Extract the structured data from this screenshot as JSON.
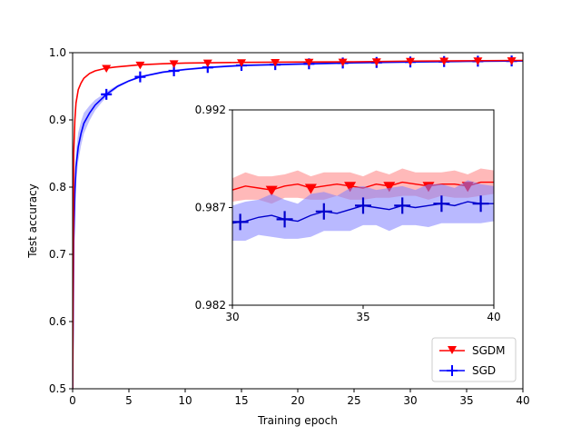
{
  "chart_data": [
    {
      "type": "line",
      "role": "main",
      "xlabel": "Training epoch",
      "ylabel": "Test accuracy",
      "xlim": [
        0,
        40
      ],
      "ylim": [
        0.5,
        1.0
      ],
      "xticks": [
        0,
        5,
        10,
        15,
        20,
        25,
        30,
        35,
        40
      ],
      "yticks": [
        0.5,
        0.6,
        0.7,
        0.8,
        0.9,
        1.0
      ],
      "xtick_labels": [
        "0",
        "5",
        "10",
        "15",
        "20",
        "25",
        "30",
        "35",
        "40"
      ],
      "ytick_labels": [
        "0.5",
        "0.6",
        "0.7",
        "0.8",
        "0.9",
        "1.0"
      ],
      "legend": {
        "placement": "bottom-right",
        "entries": [
          "SGDM",
          "SGD"
        ]
      },
      "series": [
        {
          "name": "SGDM",
          "color": "#ff0000",
          "marker": "triangle-down",
          "x": [
            0,
            0.1,
            0.2,
            0.3,
            0.5,
            0.75,
            1,
            1.5,
            2,
            3,
            4,
            6,
            8,
            10,
            15,
            20,
            25,
            30,
            35,
            40
          ],
          "y": [
            0.5,
            0.85,
            0.9,
            0.925,
            0.945,
            0.955,
            0.962,
            0.969,
            0.973,
            0.977,
            0.979,
            0.982,
            0.9835,
            0.9845,
            0.9855,
            0.986,
            0.9865,
            0.9875,
            0.988,
            0.9885
          ],
          "marker_x": [
            3,
            6,
            9,
            12,
            15,
            18,
            21,
            24,
            27,
            30,
            33,
            36,
            39
          ]
        },
        {
          "name": "SGD",
          "color": "#0000ff",
          "marker": "plus",
          "x": [
            0,
            0.1,
            0.2,
            0.3,
            0.5,
            0.75,
            1,
            1.5,
            2,
            2.5,
            3,
            4,
            5,
            6,
            8,
            10,
            12,
            15,
            20,
            25,
            30,
            35,
            40
          ],
          "y": [
            0.5,
            0.72,
            0.79,
            0.83,
            0.86,
            0.88,
            0.895,
            0.91,
            0.922,
            0.93,
            0.938,
            0.95,
            0.958,
            0.964,
            0.971,
            0.975,
            0.978,
            0.981,
            0.983,
            0.985,
            0.9862,
            0.9872,
            0.9878
          ],
          "marker_x": [
            3,
            6,
            9,
            12,
            15,
            18,
            21,
            24,
            27,
            30,
            33,
            36,
            39
          ]
        }
      ]
    },
    {
      "type": "line",
      "role": "inset",
      "xlim": [
        30,
        40
      ],
      "ylim": [
        0.982,
        0.992
      ],
      "xticks": [
        30,
        35,
        40
      ],
      "yticks": [
        0.982,
        0.987,
        0.992
      ],
      "xtick_labels": [
        "30",
        "35",
        "40"
      ],
      "ytick_labels": [
        "0.982",
        "0.987",
        "0.992"
      ],
      "series": [
        {
          "name": "SGDM",
          "color": "#ff0000",
          "band_color": "#ff8080",
          "marker": "triangle-down",
          "x": [
            30,
            30.5,
            31,
            31.5,
            32,
            32.5,
            33,
            33.5,
            34,
            34.5,
            35,
            35.5,
            36,
            36.5,
            37,
            37.5,
            38,
            38.5,
            39,
            39.5,
            40
          ],
          "y": [
            0.9879,
            0.9881,
            0.988,
            0.9879,
            0.9881,
            0.9882,
            0.988,
            0.9881,
            0.9882,
            0.9881,
            0.988,
            0.9882,
            0.9881,
            0.9883,
            0.9882,
            0.9881,
            0.9882,
            0.9882,
            0.9881,
            0.9883,
            0.9883
          ],
          "band": [
            0.0006,
            0.0007,
            0.0006,
            0.0007,
            0.0006,
            0.0007,
            0.0006,
            0.0007,
            0.0006,
            0.0007,
            0.0006,
            0.0007,
            0.0006,
            0.0007,
            0.0006,
            0.0007,
            0.0006,
            0.0007,
            0.0006,
            0.0007,
            0.0006
          ],
          "marker_x": [
            31.5,
            33,
            34.5,
            36,
            37.5,
            39
          ]
        },
        {
          "name": "SGD",
          "color": "#0000cc",
          "band_color": "#8080ff",
          "marker": "plus",
          "x": [
            30,
            30.5,
            31,
            31.5,
            32,
            32.5,
            33,
            33.5,
            34,
            34.5,
            35,
            35.5,
            36,
            36.5,
            37,
            37.5,
            38,
            38.5,
            39,
            39.5,
            40
          ],
          "y": [
            0.9862,
            0.9863,
            0.9865,
            0.9866,
            0.9864,
            0.9863,
            0.9866,
            0.9868,
            0.9867,
            0.9869,
            0.9871,
            0.987,
            0.9869,
            0.9871,
            0.987,
            0.9871,
            0.9872,
            0.9871,
            0.9873,
            0.9872,
            0.9872
          ],
          "band": [
            0.0009,
            0.001,
            0.0009,
            0.0011,
            0.001,
            0.0009,
            0.0011,
            0.001,
            0.0009,
            0.0011,
            0.001,
            0.0009,
            0.0011,
            0.001,
            0.0009,
            0.0011,
            0.001,
            0.0009,
            0.0011,
            0.001,
            0.0009
          ],
          "marker_x": [
            30.3,
            32,
            33.5,
            35,
            36.5,
            38,
            39.5
          ]
        }
      ]
    }
  ]
}
